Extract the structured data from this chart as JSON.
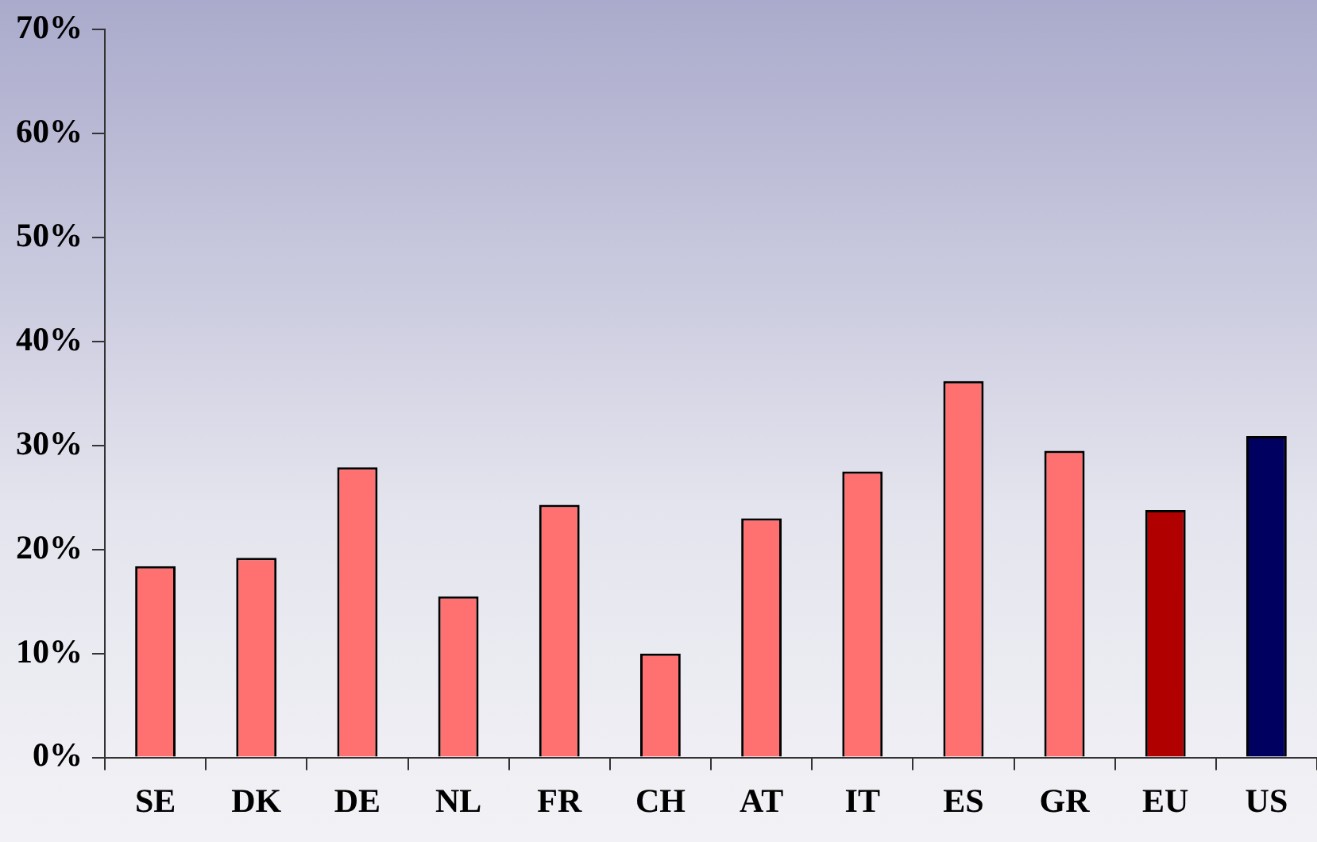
{
  "chart_data": {
    "type": "bar",
    "categories": [
      "SE",
      "DK",
      "DE",
      "NL",
      "FR",
      "CH",
      "AT",
      "IT",
      "ES",
      "GR",
      "EU",
      "US"
    ],
    "values": [
      18.4,
      19.2,
      27.9,
      15.5,
      24.3,
      10.0,
      23.0,
      27.5,
      36.2,
      29.5,
      23.8,
      30.9
    ],
    "colors": [
      "#ff7070",
      "#ff7070",
      "#ff7070",
      "#ff7070",
      "#ff7070",
      "#ff7070",
      "#ff7070",
      "#ff7070",
      "#ff7070",
      "#ff7070",
      "#b00000",
      "#000060"
    ],
    "ylim": [
      0,
      70
    ],
    "yticks": [
      {
        "value": 0,
        "label": "0%"
      },
      {
        "value": 10,
        "label": "10%"
      },
      {
        "value": 20,
        "label": "20%"
      },
      {
        "value": 30,
        "label": "30%"
      },
      {
        "value": 40,
        "label": "40%"
      },
      {
        "value": 50,
        "label": "50%"
      },
      {
        "value": 60,
        "label": "60%"
      },
      {
        "value": 70,
        "label": "70%"
      }
    ],
    "grid": false,
    "legend": false
  }
}
